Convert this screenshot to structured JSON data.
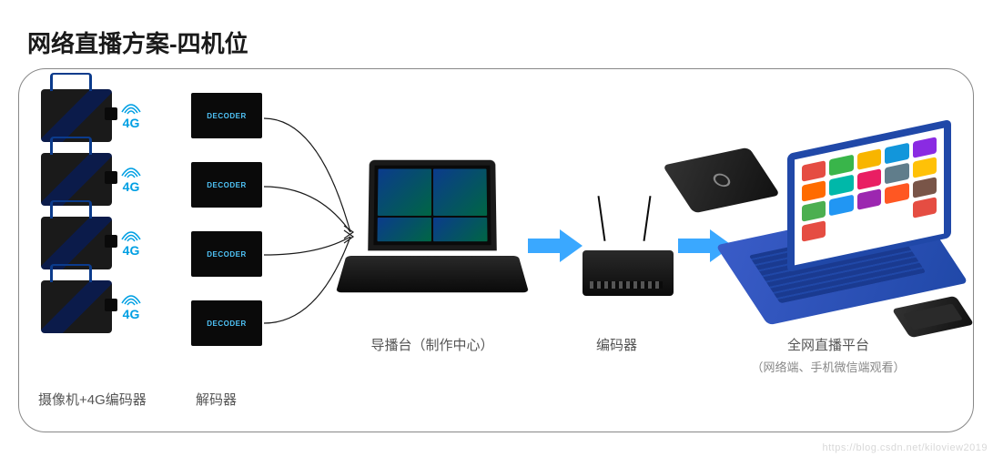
{
  "title": "网络直播方案-四机位",
  "wireless_label": "4G",
  "wireless_color": "#009fe3",
  "camera_count": 4,
  "decoder_text": "DECODER",
  "labels": {
    "camera": "摄像机+4G编码器",
    "decoder": "解码器",
    "director": "导播台（制作中心）",
    "encoder": "编码器",
    "platform": "全网直播平台",
    "platform_sub": "（网络端、手机微信端观看）"
  },
  "arrow_color": "#3aa8ff",
  "frame_border": "#888888",
  "laptop_color": "#2048a8",
  "app_icons": [
    "#e54d42",
    "#39b54a",
    "#f8b500",
    "#1296db",
    "#8a2be2",
    "#ff6b00",
    "#00b8a9",
    "#e91e63",
    "#607d8b",
    "#ffc107",
    "#4caf50",
    "#2196f3",
    "#9c27b0",
    "#ff5722",
    "#795548",
    "#e54d42",
    "#ffffff",
    "#ffffff",
    "#ffffff",
    "#e54d42"
  ],
  "watermark": "https://blog.csdn.net/kiloview2019"
}
